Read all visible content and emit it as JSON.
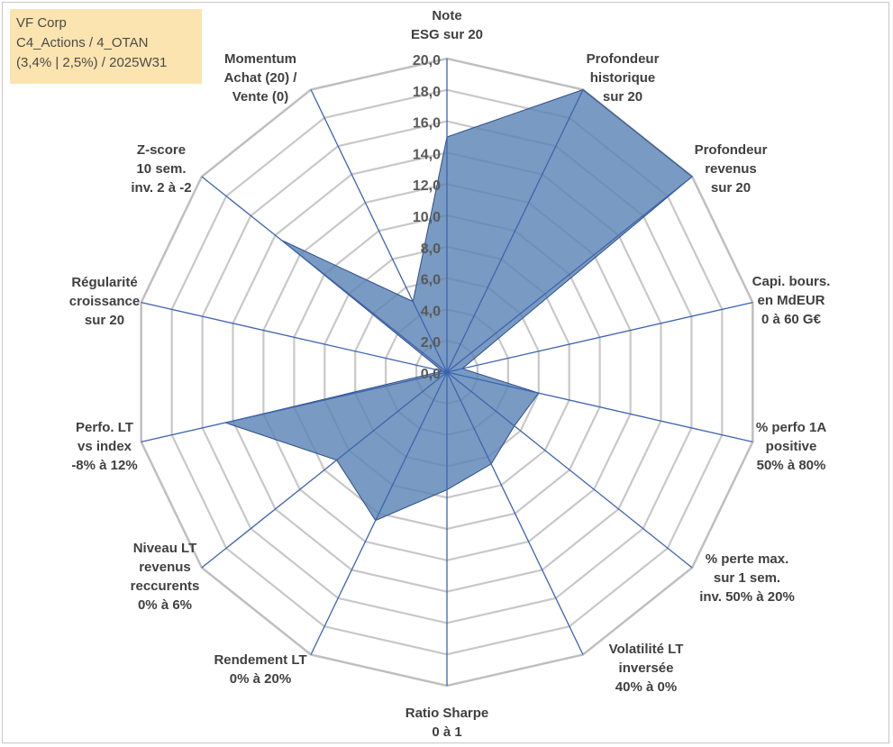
{
  "info": {
    "line1": "VF Corp",
    "line2": "C4_Actions / 4_OTAN",
    "line3": "(3,4% | 2,5%) / 2025W31"
  },
  "chart_data": {
    "type": "radar",
    "title": "",
    "rlim": [
      0,
      20
    ],
    "grid": true,
    "ticks": [
      "0,0",
      "2,0",
      "4,0",
      "6,0",
      "8,0",
      "10,0",
      "12,0",
      "14,0",
      "16,0",
      "18,0",
      "20,0"
    ],
    "axes": [
      {
        "label": [
          "Note",
          "ESG sur 20"
        ],
        "value": 15
      },
      {
        "label": [
          "Profondeur",
          "historique",
          "sur 20"
        ],
        "value": 20
      },
      {
        "label": [
          "Profondeur",
          "revenus",
          "sur 20"
        ],
        "value": 20
      },
      {
        "label": [
          "Capi. bours.",
          "en MdEUR",
          "0 à 60 G€"
        ],
        "value": 1
      },
      {
        "label": [
          "% perfo 1A",
          "positive",
          "50% à 80%"
        ],
        "value": 6
      },
      {
        "label": [
          "% perte max.",
          "sur 1 sem.",
          "inv. 50% à 20%"
        ],
        "value": 5.5
      },
      {
        "label": [
          "Volatilité LT",
          "inversée",
          "40% à 0%"
        ],
        "value": 6.5
      },
      {
        "label": [
          "Ratio Sharpe",
          "0 à 1"
        ],
        "value": 7.5
      },
      {
        "label": [
          "Rendement LT",
          "0% à 20%"
        ],
        "value": 10.5
      },
      {
        "label": [
          "Niveau LT",
          "revenus",
          "reccurents",
          "0% à 6%"
        ],
        "value": 9
      },
      {
        "label": [
          "Perfo. LT",
          "vs index",
          "-8% à 12%"
        ],
        "value": 14.5
      },
      {
        "label": [
          "Régularité",
          "croissance",
          "sur 20"
        ],
        "value": 0.3
      },
      {
        "label": [
          "Z-score",
          "10 sem.",
          "inv. 2 à -2"
        ],
        "value": 13.5
      },
      {
        "label": [
          "Momentum",
          "Achat (20) /",
          "Vente (0)"
        ],
        "value": 5
      }
    ],
    "colors": {
      "fill": "#5b84b5",
      "stroke": "#2f4f8a",
      "spoke": "#3d64b0",
      "grid": "#c8c8c8",
      "outer": "#bfbfbf"
    }
  }
}
